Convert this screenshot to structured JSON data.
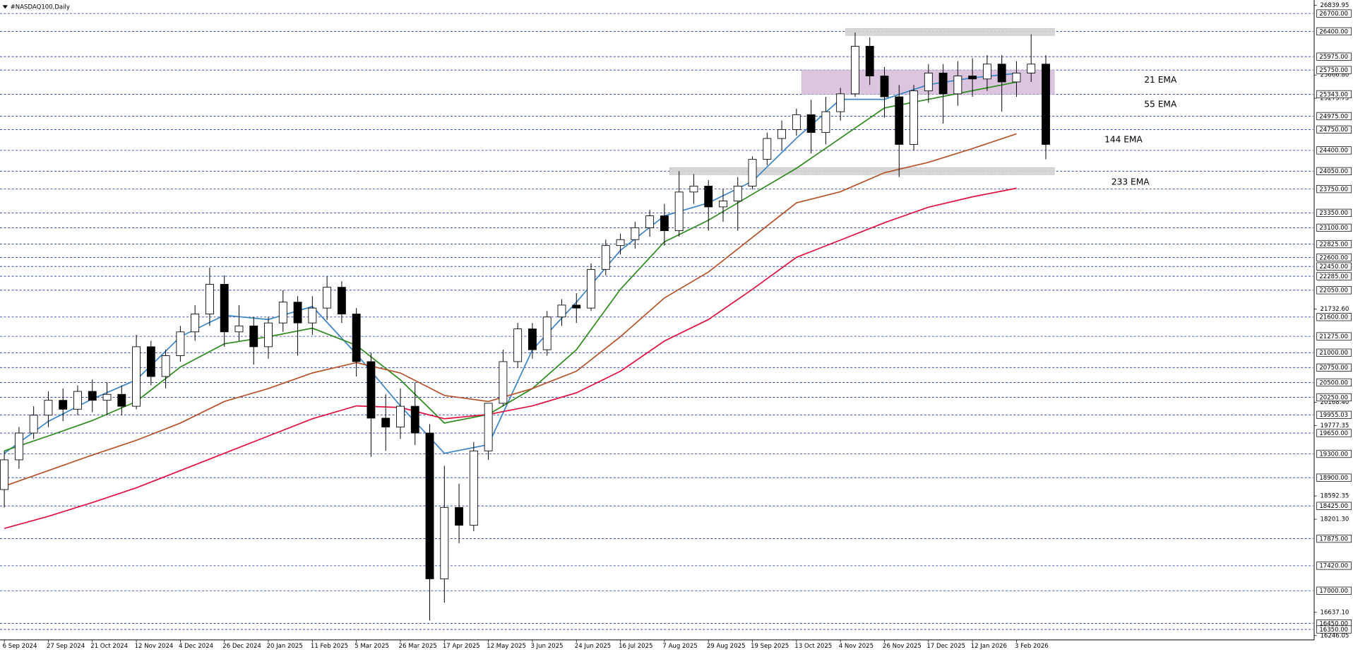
{
  "chart_data": {
    "type": "candlestick",
    "title": "#NASDAQ100,Daily",
    "categories": [
      "6 Sep 2024",
      null,
      null,
      "27 Sep 2024",
      null,
      null,
      "21 Oct 2024",
      null,
      null,
      "12 Nov 2024",
      null,
      null,
      "4 Dec 2024",
      null,
      null,
      "26 Dec 2024",
      null,
      null,
      "20 Jan 2025",
      null,
      null,
      "11 Feb 2025",
      null,
      null,
      "5 Mar 2025",
      null,
      null,
      "26 Mar 2025",
      null,
      null,
      "17 Apr 2025",
      null,
      null,
      "12 May 2025",
      null,
      null,
      "3 Jun 2025",
      null,
      null,
      "24 Jun 2025",
      null,
      null,
      "16 Jul 2025",
      null,
      null,
      "7 Aug 2025",
      null,
      null,
      "29 Aug 2025",
      null,
      null,
      "19 Sep 2025",
      null,
      null,
      "13 Oct 2025",
      null,
      null,
      "4 Nov 2025",
      null,
      null,
      "26 Nov 2025",
      null,
      null,
      "17 Dec 2025",
      null,
      null,
      "12 Jan 2026",
      null,
      null,
      "3 Feb 2026",
      null,
      null
    ],
    "open": [
      18700,
      19200,
      19650,
      19950,
      20200,
      20050,
      20350,
      20200,
      20300,
      20100,
      21100,
      20600,
      20950,
      21350,
      21650,
      22150,
      21350,
      21450,
      21100,
      21500,
      21850,
      21500,
      21750,
      22100,
      21650,
      20850,
      19900,
      19750,
      20100,
      19650,
      17200,
      18400,
      18100,
      19350,
      20150,
      20850,
      21400,
      21050,
      21600,
      21800,
      21750,
      22400,
      22800,
      22900,
      23100,
      23300,
      23050,
      23700,
      23800,
      23450,
      23550,
      23800,
      24250,
      24600,
      24750,
      25000,
      24700,
      25050,
      25350,
      26150,
      25650,
      25300,
      24500,
      25400,
      25700,
      25350,
      25650,
      25600,
      25850,
      25550,
      25700,
      25850
    ],
    "high": [
      19350,
      19750,
      20100,
      20350,
      20400,
      20450,
      20550,
      20500,
      20450,
      21300,
      21200,
      21050,
      21450,
      21800,
      22430,
      22300,
      21800,
      21600,
      21600,
      22050,
      21950,
      21950,
      22280,
      22200,
      21750,
      21000,
      20300,
      20400,
      20500,
      19800,
      19100,
      18800,
      19500,
      20150,
      21050,
      21500,
      21500,
      21700,
      21900,
      22000,
      22500,
      22900,
      23000,
      23200,
      23400,
      23500,
      24050,
      24000,
      23900,
      23750,
      23950,
      24300,
      24700,
      24900,
      25100,
      25250,
      25300,
      25450,
      26380,
      26300,
      25800,
      25500,
      25500,
      25850,
      25850,
      25900,
      25950,
      26000,
      26000,
      25900,
      26350,
      26000
    ],
    "low": [
      18400,
      19050,
      19550,
      19750,
      19850,
      19950,
      20000,
      19950,
      19950,
      20050,
      20450,
      20400,
      20850,
      21200,
      21450,
      21100,
      21200,
      20800,
      20900,
      21350,
      20950,
      21300,
      21550,
      21500,
      20600,
      19250,
      19350,
      19550,
      19450,
      16500,
      16800,
      17800,
      18000,
      19200,
      20100,
      20750,
      20900,
      20950,
      21450,
      21500,
      21700,
      22300,
      22650,
      22750,
      22950,
      22800,
      22950,
      23500,
      23050,
      23200,
      23050,
      23750,
      24150,
      24400,
      24650,
      24350,
      24500,
      24900,
      25300,
      25500,
      24950,
      23950,
      24400,
      25200,
      24850,
      25150,
      25300,
      25400,
      25050,
      25300,
      25550,
      24250
    ],
    "close": [
      19200,
      19650,
      19950,
      20200,
      20050,
      20350,
      20200,
      20300,
      20100,
      21100,
      20600,
      20950,
      21350,
      21650,
      22150,
      21350,
      21450,
      21100,
      21500,
      21850,
      21500,
      21750,
      22100,
      21650,
      20850,
      19900,
      19750,
      20100,
      19650,
      17200,
      18400,
      18100,
      19350,
      20150,
      20850,
      21400,
      21050,
      21600,
      21800,
      21750,
      22400,
      22800,
      22900,
      23100,
      23300,
      23050,
      23700,
      23800,
      23450,
      23550,
      23800,
      24250,
      24600,
      24750,
      25000,
      24700,
      25050,
      25350,
      26150,
      25650,
      25300,
      24500,
      25400,
      25700,
      25350,
      25650,
      25600,
      25850,
      25550,
      25700,
      25850,
      24500
    ],
    "up_color": "#ffffff",
    "down_color": "#000000",
    "ylim": [
      16246.05,
      26839.95
    ],
    "yticks": [
      {
        "value": 16246.05,
        "label": "16246.05"
      },
      {
        "value": 16637.1,
        "label": "16637.10"
      },
      {
        "value": 18201.3,
        "label": "18201.30"
      },
      {
        "value": 18592.35,
        "label": "18592.35"
      },
      {
        "value": 19777.35,
        "label": "19777.35"
      },
      {
        "value": 20168.4,
        "label": "20168.40"
      },
      {
        "value": 21732.6,
        "label": "21732.60"
      },
      {
        "value": 25275.75,
        "label": "25275.75"
      },
      {
        "value": 25666.8,
        "label": "25666.80"
      },
      {
        "value": 26839.95,
        "label": "26839.95"
      }
    ],
    "levels": [
      {
        "value": 26700,
        "label": "26700.00"
      },
      {
        "value": 26400,
        "label": "26400.00"
      },
      {
        "value": 25975,
        "label": "25975.00"
      },
      {
        "value": 25750,
        "label": "25750.00"
      },
      {
        "value": 25343,
        "label": "25343.00"
      },
      {
        "value": 24975,
        "label": "24975.00"
      },
      {
        "value": 24750,
        "label": "24750.00"
      },
      {
        "value": 24400,
        "label": "24400.00"
      },
      {
        "value": 24050,
        "label": "24050.00"
      },
      {
        "value": 23750,
        "label": "23750.00"
      },
      {
        "value": 23350,
        "label": "23350.00"
      },
      {
        "value": 23100,
        "label": "23100.00"
      },
      {
        "value": 22825,
        "label": "22825.00"
      },
      {
        "value": 22600,
        "label": "22600.00"
      },
      {
        "value": 22450,
        "label": "22450.00"
      },
      {
        "value": 22285,
        "label": "22285.00"
      },
      {
        "value": 22050,
        "label": "22050.00"
      },
      {
        "value": 21600,
        "label": "21600.00"
      },
      {
        "value": 21275,
        "label": "21275.00"
      },
      {
        "value": 21000,
        "label": "21000.00"
      },
      {
        "value": 20750,
        "label": "20750.00"
      },
      {
        "value": 20500,
        "label": "20500.00"
      },
      {
        "value": 20250,
        "label": "20250.00"
      },
      {
        "value": 19955.03,
        "label": "19955.03"
      },
      {
        "value": 19650,
        "label": "19650.00"
      },
      {
        "value": 19300,
        "label": "19300.00"
      },
      {
        "value": 18900,
        "label": "18900.00"
      },
      {
        "value": 18425,
        "label": "18425.00"
      },
      {
        "value": 17875,
        "label": "17875.00"
      },
      {
        "value": 17420,
        "label": "17420.00"
      },
      {
        "value": 17000,
        "label": "17000.00"
      },
      {
        "value": 16450,
        "label": "16450.00"
      },
      {
        "value": 16350,
        "label": "16350.00"
      }
    ],
    "level_color": "#1a2f9c",
    "zones": [
      {
        "from": 25343,
        "to": 25750,
        "start": "13 Oct 2025",
        "color": "#d9bfdc"
      },
      {
        "from": 26330,
        "to": 26450,
        "start": "4 Nov 2025",
        "color": "#d3d3d3"
      },
      {
        "from": 23990,
        "to": 24110,
        "start": "7 Aug 2025",
        "color": "#d3d3d3"
      }
    ],
    "series": [
      {
        "name": "21 EMA",
        "color": "#3d85c6",
        "x": [
          "6 Sep 2024",
          "27 Sep 2024",
          "21 Oct 2024",
          "12 Nov 2024",
          "4 Dec 2024",
          "26 Dec 2024",
          "20 Jan 2025",
          "11 Feb 2025",
          "5 Mar 2025",
          "26 Mar 2025",
          "17 Apr 2025",
          "12 May 2025",
          "3 Jun 2025",
          "24 Jun 2025",
          "16 Jul 2025",
          "7 Aug 2025",
          "29 Aug 2025",
          "19 Sep 2025",
          "13 Oct 2025",
          "4 Nov 2025",
          "26 Nov 2025",
          "17 Dec 2025",
          "12 Jan 2026",
          "3 Feb 2026"
        ],
        "values": [
          19310,
          19846,
          20223,
          20543,
          21268,
          21630,
          21558,
          21776,
          20978,
          20107,
          19310,
          19455,
          21050,
          21848,
          22720,
          23300,
          23518,
          23880,
          24605,
          25258,
          25258,
          25505,
          25620,
          25693
        ]
      },
      {
        "name": "55 EMA",
        "color": "#2e8b1e",
        "x": [
          "6 Sep 2024",
          "27 Sep 2024",
          "21 Oct 2024",
          "12 Nov 2024",
          "4 Dec 2024",
          "26 Dec 2024",
          "20 Jan 2025",
          "11 Feb 2025",
          "5 Mar 2025",
          "26 Mar 2025",
          "17 Apr 2025",
          "12 May 2025",
          "3 Jun 2025",
          "24 Jun 2025",
          "16 Jul 2025",
          "7 Aug 2025",
          "29 Aug 2025",
          "19 Sep 2025",
          "13 Oct 2025",
          "4 Nov 2025",
          "26 Nov 2025",
          "17 Dec 2025",
          "12 Jan 2026",
          "3 Feb 2026"
        ],
        "values": [
          19350,
          19600,
          19860,
          20180,
          20760,
          21150,
          21268,
          21413,
          21123,
          20543,
          19817,
          19962,
          20398,
          21050,
          22066,
          22864,
          23227,
          23663,
          24098,
          24605,
          25113,
          25258,
          25403,
          25548
        ]
      },
      {
        "name": "144 EMA",
        "color": "#b5532a",
        "x": [
          "6 Sep 2024",
          "27 Sep 2024",
          "21 Oct 2024",
          "12 Nov 2024",
          "4 Dec 2024",
          "26 Dec 2024",
          "20 Jan 2025",
          "11 Feb 2025",
          "5 Mar 2025",
          "26 Mar 2025",
          "17 Apr 2025",
          "12 May 2025",
          "3 Jun 2025",
          "24 Jun 2025",
          "16 Jul 2025",
          "7 Aug 2025",
          "29 Aug 2025",
          "19 Sep 2025",
          "13 Oct 2025",
          "4 Nov 2025",
          "26 Nov 2025",
          "17 Dec 2025",
          "12 Jan 2026",
          "3 Feb 2026"
        ],
        "values": [
          18758,
          19019,
          19280,
          19527,
          19817,
          20180,
          20398,
          20659,
          20833,
          20659,
          20282,
          20180,
          20398,
          20688,
          21268,
          21921,
          22356,
          22937,
          23518,
          23706,
          24025,
          24199,
          24431,
          24677
        ]
      },
      {
        "name": "233 EMA",
        "color": "#e0103f",
        "x": [
          "6 Sep 2024",
          "27 Sep 2024",
          "21 Oct 2024",
          "12 Nov 2024",
          "4 Dec 2024",
          "26 Dec 2024",
          "20 Jan 2025",
          "11 Feb 2025",
          "5 Mar 2025",
          "26 Mar 2025",
          "17 Apr 2025",
          "12 May 2025",
          "3 Jun 2025",
          "24 Jun 2025",
          "16 Jul 2025",
          "7 Aug 2025",
          "29 Aug 2025",
          "19 Sep 2025",
          "13 Oct 2025",
          "4 Nov 2025",
          "26 Nov 2025",
          "17 Dec 2025",
          "12 Jan 2026",
          "3 Feb 2026"
        ],
        "values": [
          18047,
          18250,
          18482,
          18729,
          19019,
          19310,
          19600,
          19890,
          20107,
          20078,
          19890,
          19962,
          20107,
          20325,
          20688,
          21196,
          21558,
          22066,
          22603,
          22893,
          23184,
          23445,
          23619,
          23764
        ]
      }
    ]
  }
}
